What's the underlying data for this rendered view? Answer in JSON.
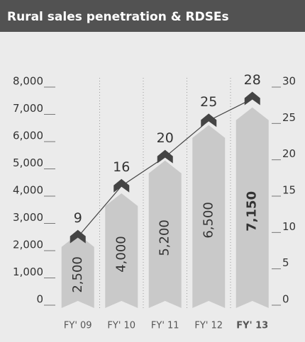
{
  "chart_data": {
    "type": "bar",
    "title": "Rural sales penetration & RDSEs",
    "categories": [
      "FY' 09",
      "FY' 10",
      "FY' 11",
      "FY' 12",
      "FY' 13"
    ],
    "series": [
      {
        "color": "#c9c9c9",
        "values": [
          2500,
          4000,
          5200,
          6500,
          7150
        ],
        "value_labels": [
          "2,500",
          "4,000",
          "5,200",
          "6,500",
          "7,150"
        ]
      },
      {
        "type": "line",
        "axis": "y2",
        "color": "#444444",
        "values": [
          9,
          16,
          20,
          25,
          28
        ]
      }
    ],
    "ylim": [
      0,
      8000
    ],
    "yticks": [
      0,
      {
        "value": 1000,
        "label": "1,000"
      },
      {
        "value": 2000,
        "label": "2,000"
      },
      {
        "value": 3000,
        "label": "3,000"
      },
      {
        "value": 4000,
        "label": "4,000"
      },
      {
        "value": 5000,
        "label": "5,000"
      },
      {
        "value": 6000,
        "label": "6,000"
      },
      {
        "value": 7000,
        "label": "7,000"
      },
      {
        "value": 8000,
        "label": "8,000"
      }
    ],
    "y2lim": [
      0,
      30
    ],
    "y2ticks": [
      0,
      5,
      10,
      15,
      20,
      25,
      30
    ],
    "highlight_index": 4,
    "grid": true
  }
}
